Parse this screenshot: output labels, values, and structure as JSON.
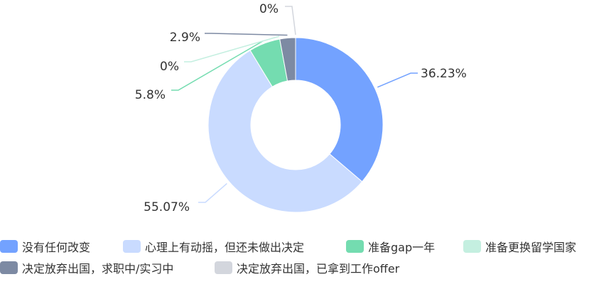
{
  "chart_data": {
    "type": "pie",
    "variant": "donut",
    "title": "",
    "legend_position": "bottom",
    "categories": [
      "没有任何改变",
      "心理上有动摇，但还未做出决定",
      "准备gap一年",
      "准备更换留学国家",
      "决定放弃出国，求职中/实习中",
      "决定放弃出国，已拿到工作offer"
    ],
    "values": [
      36.23,
      55.07,
      5.8,
      0,
      2.9,
      0
    ],
    "labels": [
      "36.23%",
      "55.07%",
      "5.8%",
      "0%",
      "2.9%",
      "0%"
    ],
    "colors": [
      "#73a2ff",
      "#c9dbff",
      "#74dcb0",
      "#c4efe0",
      "#7d8aa3",
      "#d3d6dd"
    ]
  }
}
